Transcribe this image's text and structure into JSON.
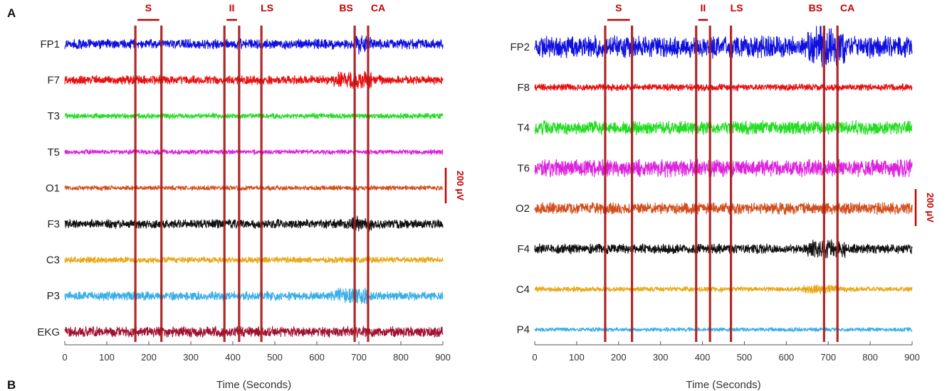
{
  "panel_letters": {
    "top": "A",
    "bottom": "B"
  },
  "chart_data": [
    {
      "type": "line",
      "panel": "left",
      "xlabel": "Time (Seconds)",
      "xlim": [
        0,
        900
      ],
      "xticks": [
        0,
        100,
        200,
        300,
        400,
        500,
        600,
        700,
        800,
        900
      ],
      "grid": false,
      "scale_bar": {
        "label": "200 μV",
        "value": 200,
        "unit": "μV"
      },
      "events": [
        {
          "name": "S",
          "type": "interval",
          "start": 168,
          "end": 230
        },
        {
          "name": "II",
          "type": "interval",
          "start": 380,
          "end": 415
        },
        {
          "name": "LS",
          "type": "marker",
          "at": 468
        },
        {
          "name": "BS",
          "type": "marker",
          "at": 690
        },
        {
          "name": "CA",
          "type": "marker",
          "at": 722
        }
      ],
      "series": [
        {
          "name": "FP1",
          "color": "#1010e0",
          "amplitude_uV": 45,
          "burst": [
            690,
            730
          ]
        },
        {
          "name": "F7",
          "color": "#e81010",
          "amplitude_uV": 40,
          "burst": [
            640,
            730
          ]
        },
        {
          "name": "T3",
          "color": "#22dd22",
          "amplitude_uV": 25,
          "burst": null
        },
        {
          "name": "T5",
          "color": "#dd22dd",
          "amplitude_uV": 22,
          "burst": null
        },
        {
          "name": "O1",
          "color": "#d2501e",
          "amplitude_uV": 22,
          "burst": null
        },
        {
          "name": "F3",
          "color": "#111111",
          "amplitude_uV": 40,
          "burst": [
            680,
            730
          ]
        },
        {
          "name": "C3",
          "color": "#e8a818",
          "amplitude_uV": 28,
          "burst": null
        },
        {
          "name": "P3",
          "color": "#3aaee8",
          "amplitude_uV": 40,
          "burst": [
            640,
            720
          ]
        },
        {
          "name": "EKG",
          "color": "#a01030",
          "amplitude_uV": 48,
          "burst": null
        }
      ]
    },
    {
      "type": "line",
      "panel": "right",
      "xlabel": "Time (Seconds)",
      "xlim": [
        0,
        900
      ],
      "xticks": [
        0,
        100,
        200,
        300,
        400,
        500,
        600,
        700,
        800,
        900
      ],
      "grid": false,
      "scale_bar": {
        "label": "200 μV",
        "value": 200,
        "unit": "μV"
      },
      "events": [
        {
          "name": "S",
          "type": "interval",
          "start": 168,
          "end": 232
        },
        {
          "name": "II",
          "type": "interval",
          "start": 385,
          "end": 418
        },
        {
          "name": "LS",
          "type": "marker",
          "at": 468
        },
        {
          "name": "BS",
          "type": "marker",
          "at": 690
        },
        {
          "name": "CA",
          "type": "marker",
          "at": 722
        }
      ],
      "series": [
        {
          "name": "FP2",
          "color": "#1010e0",
          "amplitude_uV": 95,
          "burst": [
            650,
            740
          ]
        },
        {
          "name": "F8",
          "color": "#e81010",
          "amplitude_uV": 30,
          "burst": null
        },
        {
          "name": "T4",
          "color": "#22dd22",
          "amplitude_uV": 60,
          "burst": null
        },
        {
          "name": "T6",
          "color": "#dd22dd",
          "amplitude_uV": 75,
          "burst": null
        },
        {
          "name": "O2",
          "color": "#d2501e",
          "amplitude_uV": 50,
          "burst": null
        },
        {
          "name": "F4",
          "color": "#111111",
          "amplitude_uV": 42,
          "burst": [
            650,
            740
          ]
        },
        {
          "name": "C4",
          "color": "#e8a818",
          "amplitude_uV": 22,
          "burst": [
            640,
            720
          ]
        },
        {
          "name": "P4",
          "color": "#3aaee8",
          "amplitude_uV": 18,
          "burst": null
        }
      ]
    }
  ]
}
